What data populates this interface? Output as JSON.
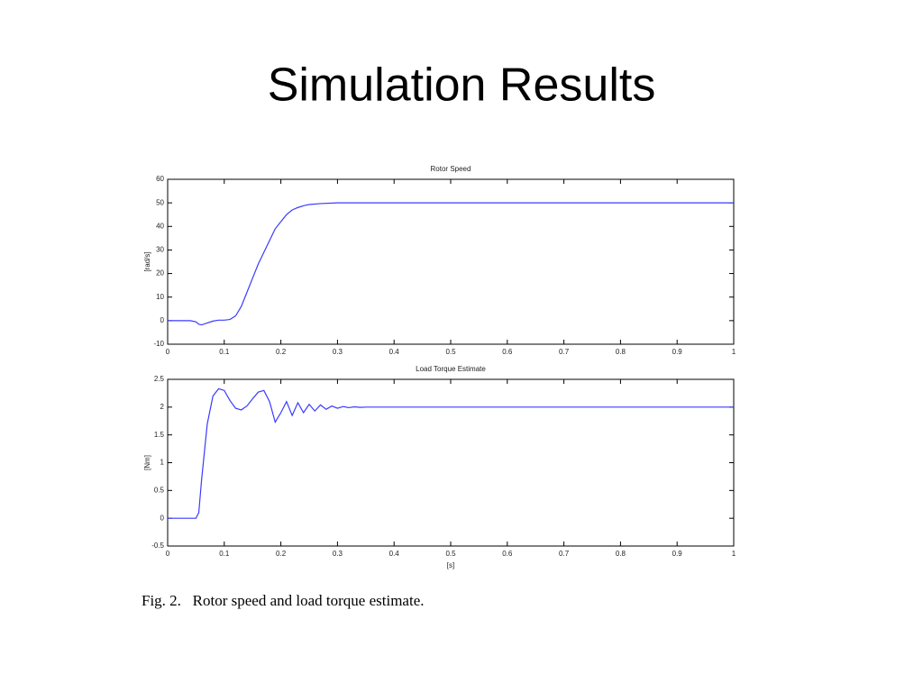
{
  "title": "Simulation Results",
  "caption": "Fig. 2.   Rotor speed and load torque estimate.",
  "chart_data": [
    {
      "type": "line",
      "title": "Rotor Speed",
      "y_label": "[rad/s]",
      "x": [
        0,
        0.04,
        0.05,
        0.055,
        0.06,
        0.07,
        0.08,
        0.09,
        0.1,
        0.11,
        0.12,
        0.13,
        0.14,
        0.15,
        0.16,
        0.17,
        0.18,
        0.19,
        0.2,
        0.21,
        0.22,
        0.23,
        0.24,
        0.25,
        0.27,
        0.3,
        0.35,
        0.4,
        1.0
      ],
      "series": [
        {
          "name": "Rotor Speed",
          "color": "#3a3aff",
          "values": [
            0,
            0,
            -0.5,
            -1.5,
            -1.8,
            -1,
            -0.2,
            0.2,
            0.2,
            0.5,
            2,
            6,
            12,
            18,
            24,
            29,
            34,
            39,
            42,
            45,
            47,
            48,
            48.8,
            49.3,
            49.7,
            50,
            50,
            50,
            50
          ]
        }
      ],
      "xlim": [
        0,
        1
      ],
      "xticks": [
        0,
        0.1,
        0.2,
        0.3,
        0.4,
        0.5,
        0.6,
        0.7,
        0.8,
        0.9,
        1
      ],
      "ylim": [
        -10,
        60
      ],
      "yticks": [
        -10,
        0,
        10,
        20,
        30,
        40,
        50,
        60
      ],
      "grid": false
    },
    {
      "type": "line",
      "title": "Load Torque Estimate",
      "y_label": "[Nm]",
      "x_label": "[s]",
      "x": [
        0,
        0.05,
        0.055,
        0.06,
        0.07,
        0.08,
        0.09,
        0.1,
        0.11,
        0.12,
        0.13,
        0.14,
        0.15,
        0.16,
        0.17,
        0.18,
        0.19,
        0.2,
        0.21,
        0.22,
        0.23,
        0.24,
        0.25,
        0.26,
        0.27,
        0.28,
        0.29,
        0.3,
        0.31,
        0.32,
        0.33,
        0.34,
        0.35,
        0.4,
        1.0
      ],
      "series": [
        {
          "name": "Load Torque Estimate",
          "color": "#3a3aff",
          "values": [
            0,
            0,
            0.1,
            0.7,
            1.7,
            2.2,
            2.33,
            2.3,
            2.12,
            1.98,
            1.95,
            2.02,
            2.15,
            2.27,
            2.3,
            2.1,
            1.73,
            1.9,
            2.1,
            1.85,
            2.08,
            1.9,
            2.05,
            1.93,
            2.04,
            1.96,
            2.02,
            1.98,
            2.01,
            1.99,
            2.005,
            1.995,
            2.0,
            2.0,
            2.0
          ]
        }
      ],
      "xlim": [
        0,
        1
      ],
      "xticks": [
        0,
        0.1,
        0.2,
        0.3,
        0.4,
        0.5,
        0.6,
        0.7,
        0.8,
        0.9,
        1
      ],
      "ylim": [
        -0.5,
        2.5
      ],
      "yticks": [
        -0.5,
        0,
        0.5,
        1,
        1.5,
        2,
        2.5
      ],
      "grid": false
    }
  ]
}
